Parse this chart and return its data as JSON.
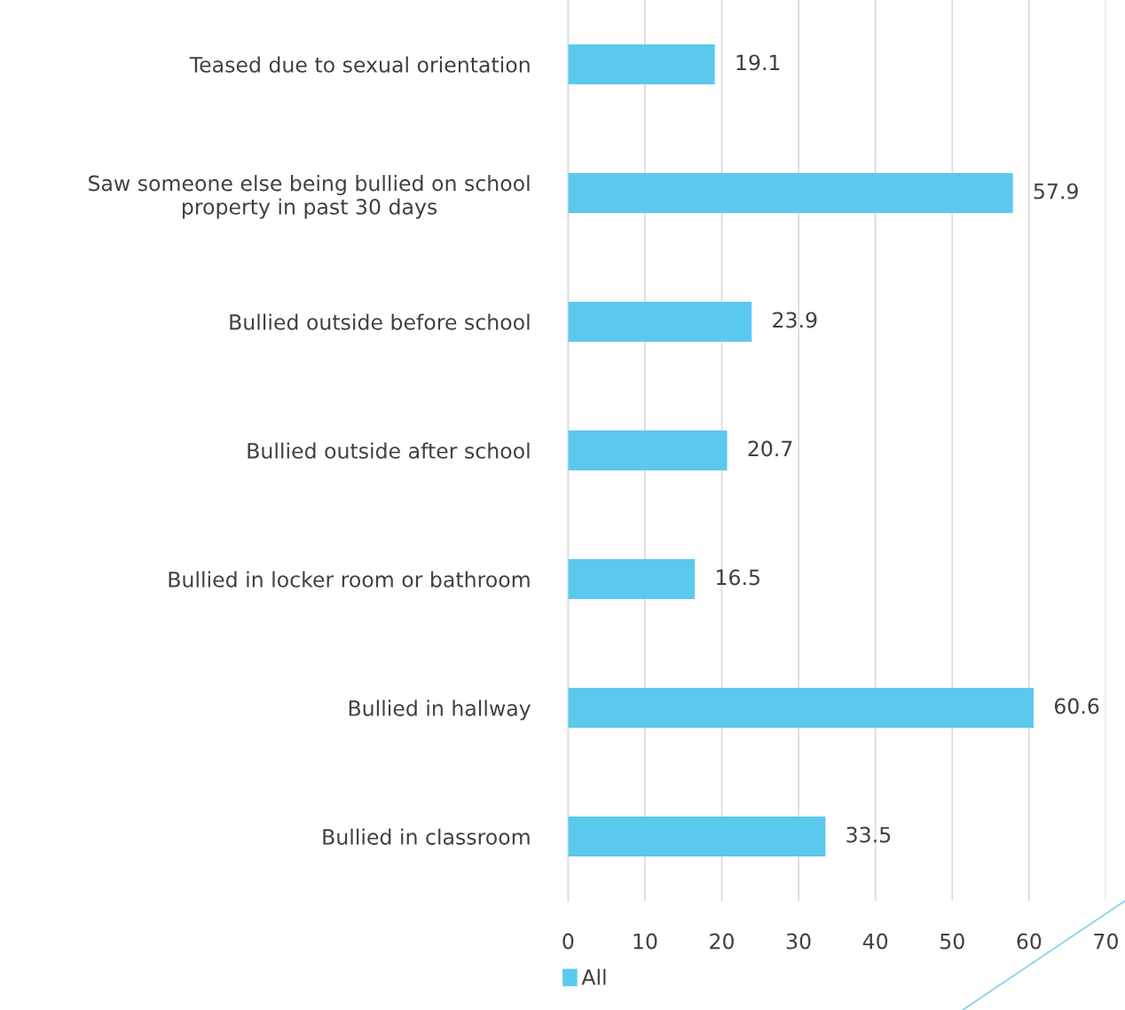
{
  "chart_data": {
    "type": "bar",
    "orientation": "horizontal",
    "categories": [
      "Teased due to sexual orientation",
      "Saw someone else being bullied on school\nproperty in past 30 days",
      "Bullied outside before school",
      "Bullied outside after school",
      "Bullied in locker room or bathroom",
      "Bullied in hallway",
      "Bullied in classroom"
    ],
    "series": [
      {
        "name": "All",
        "color": "#5bc9ee",
        "values": [
          19.1,
          57.9,
          23.9,
          20.7,
          16.5,
          60.6,
          33.5
        ]
      }
    ],
    "xlim": [
      0,
      70
    ],
    "xticks": [
      0,
      10,
      20,
      30,
      40,
      50,
      60,
      70
    ],
    "grid": "x",
    "legend": "bottom",
    "data_labels": true
  }
}
